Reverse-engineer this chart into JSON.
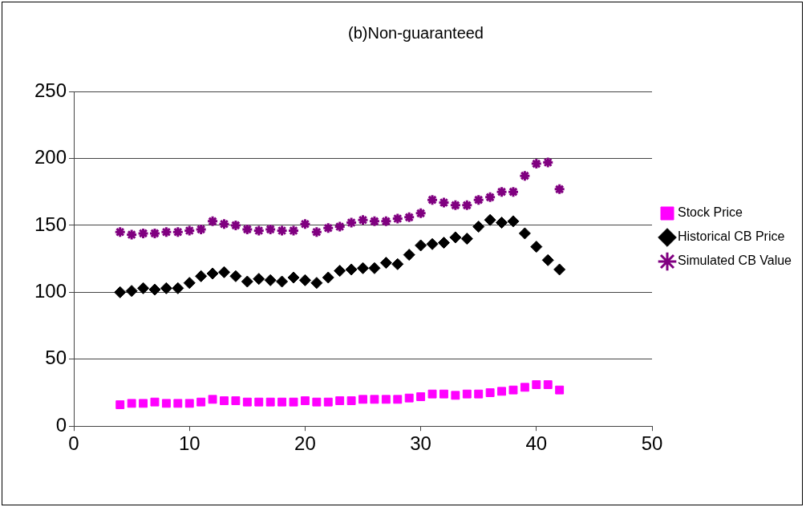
{
  "chart_data": {
    "type": "scatter",
    "title": "(b)Non-guaranteed",
    "x": [
      4,
      5,
      6,
      7,
      8,
      9,
      10,
      11,
      12,
      13,
      14,
      15,
      16,
      17,
      18,
      19,
      20,
      21,
      22,
      23,
      24,
      25,
      26,
      27,
      28,
      29,
      30,
      31,
      32,
      33,
      34,
      35,
      36,
      37,
      38,
      39,
      40,
      41,
      42
    ],
    "series": [
      {
        "name": "Stock Price",
        "color": "#ff00ff",
        "marker": "square",
        "values": [
          16,
          17,
          17,
          18,
          17,
          17,
          17,
          18,
          20,
          19,
          19,
          18,
          18,
          18,
          18,
          18,
          19,
          18,
          18,
          19,
          19,
          20,
          20,
          20,
          20,
          21,
          22,
          24,
          24,
          23,
          24,
          24,
          25,
          26,
          27,
          29,
          31,
          31,
          27
        ]
      },
      {
        "name": "Historical CB Price",
        "color": "#000000",
        "marker": "diamond",
        "values": [
          100,
          101,
          103,
          102,
          103,
          103,
          107,
          112,
          114,
          115,
          112,
          108,
          110,
          109,
          108,
          111,
          109,
          107,
          111,
          116,
          117,
          118,
          118,
          122,
          121,
          128,
          135,
          136,
          137,
          141,
          140,
          149,
          154,
          152,
          153,
          144,
          134,
          124,
          117
        ]
      },
      {
        "name": "Simulated CB Value",
        "color": "#800080",
        "marker": "cross",
        "values": [
          145,
          143,
          144,
          144,
          145,
          145,
          146,
          147,
          153,
          151,
          150,
          147,
          146,
          147,
          146,
          146,
          151,
          145,
          148,
          149,
          152,
          154,
          153,
          153,
          155,
          156,
          159,
          169,
          167,
          165,
          165,
          169,
          171,
          175,
          175,
          187,
          196,
          197,
          177
        ]
      }
    ],
    "xlim": [
      0,
      50
    ],
    "xticks": [
      0,
      10,
      20,
      30,
      40,
      50
    ],
    "ylim": [
      0,
      250
    ],
    "yticks": [
      0,
      50,
      100,
      150,
      200,
      250
    ],
    "grid": "y",
    "legend": "right"
  }
}
